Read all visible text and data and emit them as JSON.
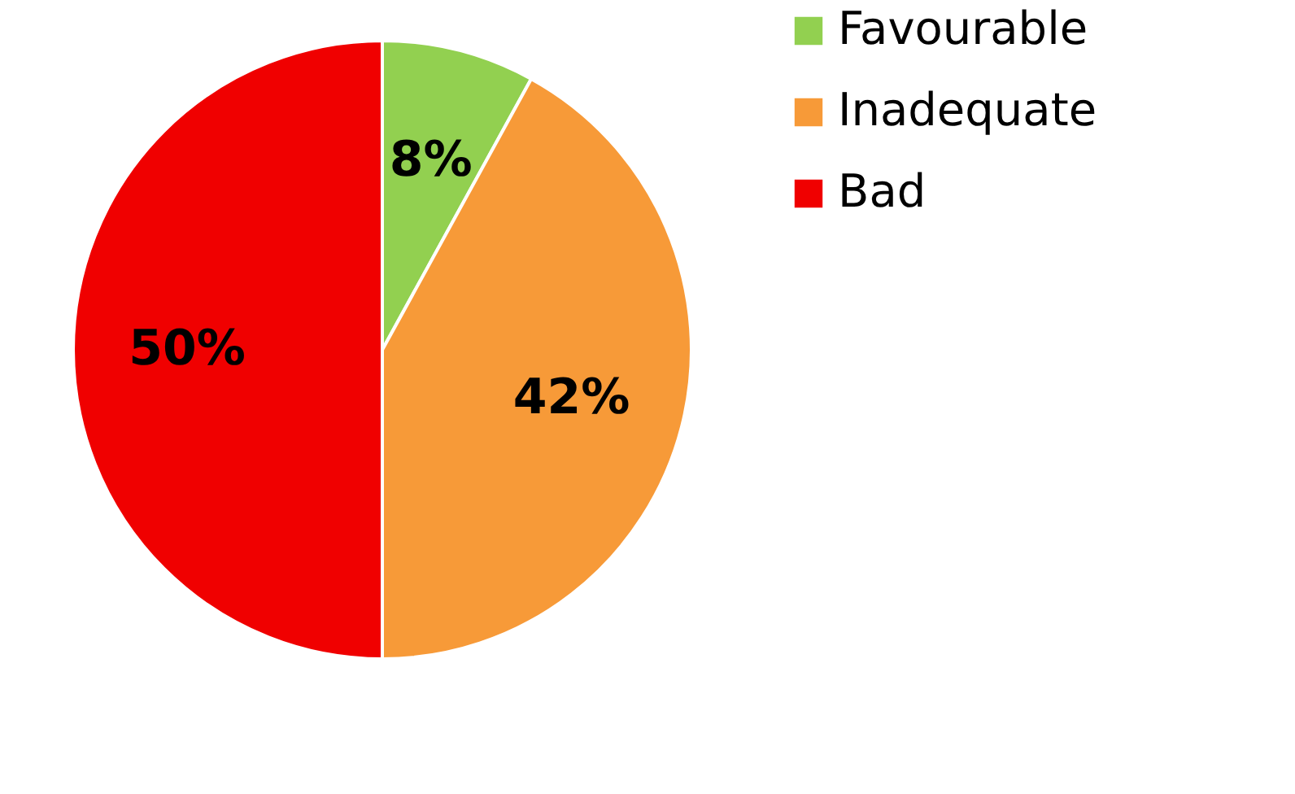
{
  "chart_data": {
    "type": "pie",
    "categories": [
      "Favourable",
      "Inadequate",
      "Bad"
    ],
    "values": [
      8,
      42,
      50
    ],
    "colors": [
      "#92d050",
      "#f79a38",
      "#f00000"
    ],
    "value_labels": [
      "8%",
      "42%",
      "50%"
    ],
    "legend": "right"
  }
}
